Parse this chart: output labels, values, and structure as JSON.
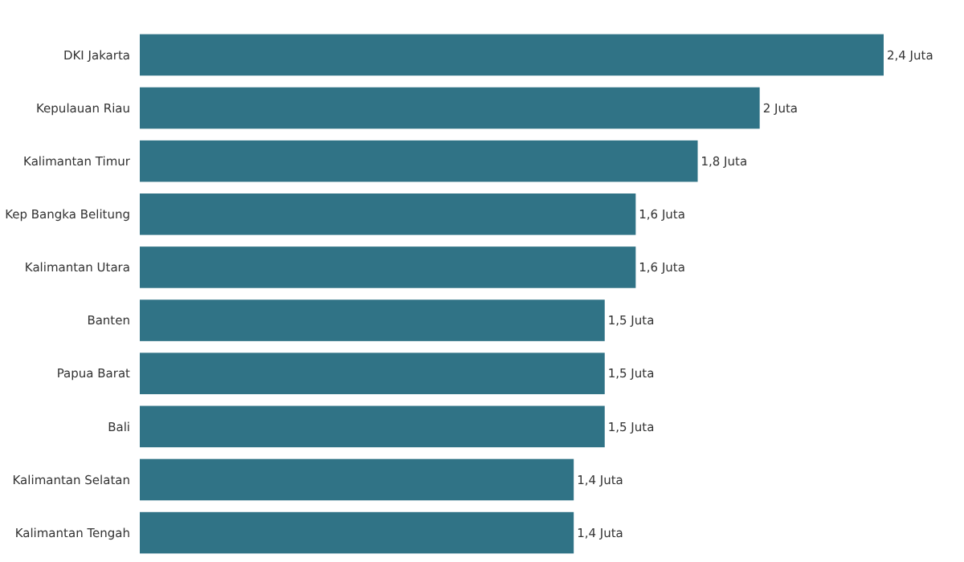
{
  "chart_data": {
    "type": "bar",
    "orientation": "horizontal",
    "categories": [
      "DKI Jakarta",
      "Kepulauan Riau",
      "Kalimantan Timur",
      "Kep Bangka Belitung",
      "Kalimantan Utara",
      "Banten",
      "Papua Barat",
      "Bali",
      "Kalimantan Selatan",
      "Kalimantan Tengah"
    ],
    "values": [
      2.4,
      2,
      1.8,
      1.6,
      1.6,
      1.5,
      1.5,
      1.5,
      1.4,
      1.4
    ],
    "value_labels": [
      "2,4 Juta",
      "2 Juta",
      "1,8 Juta",
      "1,6 Juta",
      "1,6 Juta",
      "1,5 Juta",
      "1,5 Juta",
      "1,5 Juta",
      "1,4 Juta",
      "1,4 Juta"
    ],
    "color": "#307386",
    "tick_labels": false
  }
}
